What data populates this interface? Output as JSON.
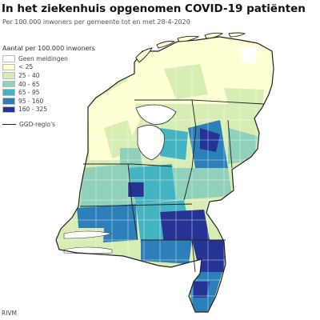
{
  "title": "In het ziekenhuis opgenomen COVID-19 patiënten",
  "subtitle": "Per 100.000 inwoners per gemeente tot en met 28-4-2020",
  "legend": {
    "title": "Aantal per 100.000 inwoners",
    "items": [
      {
        "label": "Geen meldingen",
        "color": "#ffffff"
      },
      {
        "label": "< 25",
        "color": "#ffffd4"
      },
      {
        "label": "25 - 40",
        "color": "#d7edb3"
      },
      {
        "label": "40 - 65",
        "color": "#8fd1bb"
      },
      {
        "label": "65 - 95",
        "color": "#45b4c2"
      },
      {
        "label": "95 - 160",
        "color": "#2c7fb8"
      },
      {
        "label": "160 - 325",
        "color": "#253494"
      }
    ],
    "border_label": "GGD-regio's"
  },
  "source": "RIVM"
}
